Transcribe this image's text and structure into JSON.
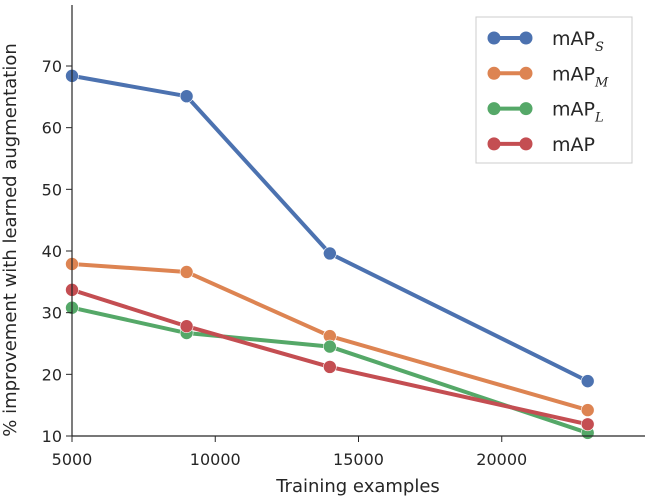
{
  "chart_data": {
    "type": "line",
    "title": "",
    "xlabel": "Training examples",
    "ylabel": "% improvement with learned augmentation",
    "xlim": [
      5000,
      25000
    ],
    "ylim": [
      10,
      80
    ],
    "xticks": [
      5000,
      10000,
      15000,
      20000
    ],
    "yticks": [
      10,
      20,
      30,
      40,
      50,
      60,
      70
    ],
    "grid": false,
    "legend_placement": "top-right",
    "x": [
      5000,
      9000,
      14000,
      23000
    ],
    "series": [
      {
        "name": "mAP",
        "sub": "S",
        "color": "#4c72b0",
        "values": [
          68.4,
          65.1,
          39.6,
          18.9
        ]
      },
      {
        "name": "mAP",
        "sub": "M",
        "color": "#dd8452",
        "values": [
          37.9,
          36.6,
          26.2,
          14.2
        ]
      },
      {
        "name": "mAP",
        "sub": "L",
        "color": "#55a868",
        "values": [
          30.8,
          26.7,
          24.5,
          10.5
        ]
      },
      {
        "name": "mAP",
        "sub": "",
        "color": "#c44e52",
        "values": [
          33.7,
          27.8,
          21.2,
          11.9
        ]
      }
    ]
  }
}
